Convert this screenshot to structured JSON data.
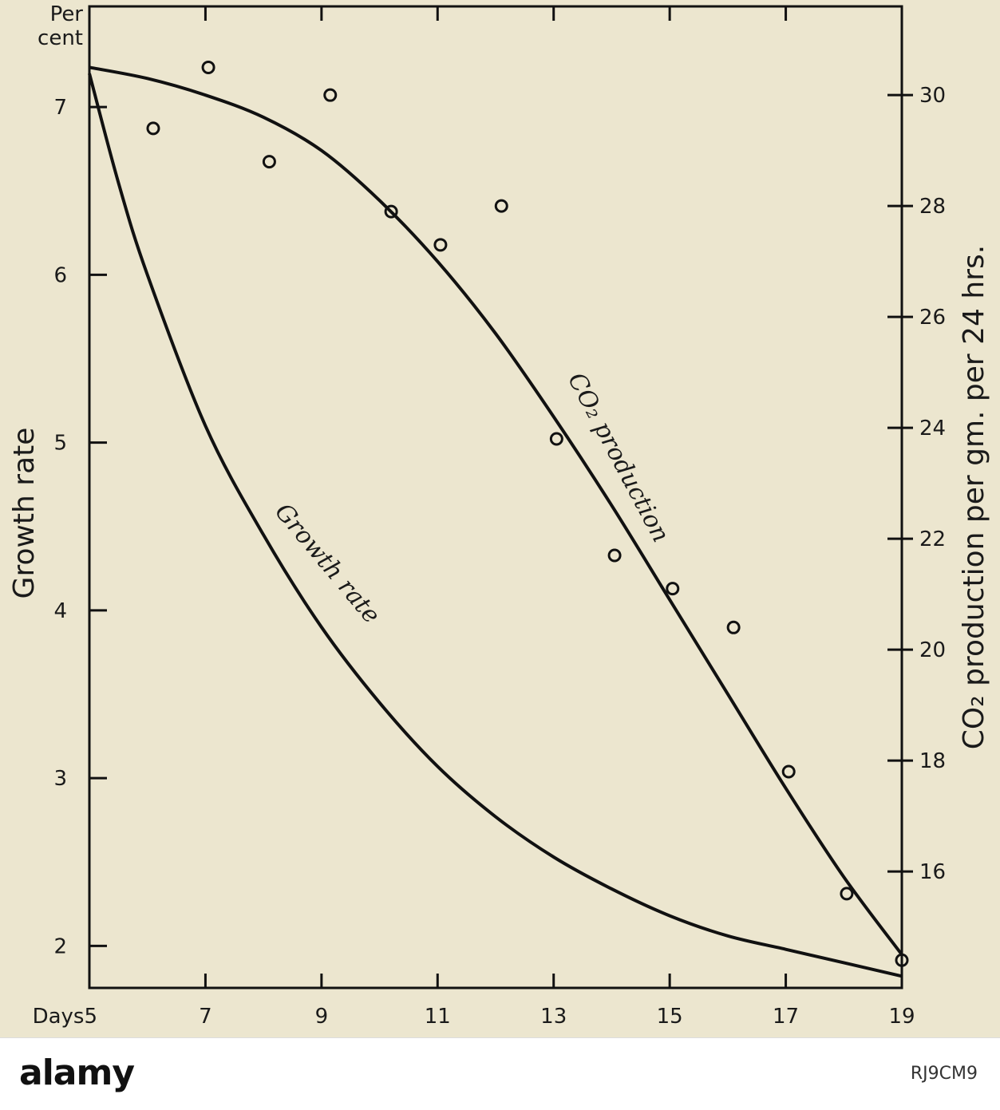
{
  "chart_data": {
    "type": "line",
    "x_label": "Days",
    "x_ticks": [
      5,
      7,
      9,
      11,
      13,
      15,
      17,
      19
    ],
    "x_range": [
      5,
      19
    ],
    "y_left": {
      "label": "Growth rate",
      "unit_label_line1": "Per",
      "unit_label_line2": "cent",
      "ticks": [
        2,
        3,
        4,
        5,
        6,
        7
      ],
      "range": [
        1.75,
        7.6
      ]
    },
    "y_right": {
      "label": "CO₂ production per gm. per 24 hrs.",
      "ticks": [
        16,
        18,
        20,
        22,
        24,
        26,
        28,
        30
      ],
      "range": [
        13.9,
        31.6
      ]
    },
    "series": [
      {
        "name": "CO₂ production",
        "axis": "right",
        "curve": [
          [
            5,
            30.5
          ],
          [
            6,
            30.3
          ],
          [
            7,
            30.0
          ],
          [
            8,
            29.6
          ],
          [
            9,
            29.0
          ],
          [
            10,
            28.1
          ],
          [
            11,
            27.0
          ],
          [
            12,
            25.7
          ],
          [
            13,
            24.2
          ],
          [
            14,
            22.6
          ],
          [
            15,
            20.9
          ],
          [
            16,
            19.2
          ],
          [
            17,
            17.5
          ],
          [
            18,
            15.9
          ],
          [
            19,
            14.5
          ]
        ],
        "points": [
          [
            6.1,
            29.4
          ],
          [
            7.05,
            30.5
          ],
          [
            8.1,
            28.8
          ],
          [
            9.15,
            30.0
          ],
          [
            10.2,
            27.9
          ],
          [
            11.05,
            27.3
          ],
          [
            12.1,
            28.0
          ],
          [
            13.05,
            23.8
          ],
          [
            14.05,
            21.7
          ],
          [
            15.05,
            21.1
          ],
          [
            16.1,
            20.4
          ],
          [
            17.05,
            17.8
          ],
          [
            18.05,
            15.6
          ],
          [
            19.0,
            14.4
          ]
        ]
      },
      {
        "name": "Growth rate",
        "axis": "left",
        "curve": [
          [
            5,
            7.2
          ],
          [
            5.5,
            6.55
          ],
          [
            6,
            6.0
          ],
          [
            7,
            5.1
          ],
          [
            8,
            4.45
          ],
          [
            9,
            3.9
          ],
          [
            10,
            3.45
          ],
          [
            11,
            3.07
          ],
          [
            12,
            2.77
          ],
          [
            13,
            2.53
          ],
          [
            14,
            2.34
          ],
          [
            15,
            2.18
          ],
          [
            16,
            2.06
          ],
          [
            17,
            1.98
          ],
          [
            18,
            1.9
          ],
          [
            19,
            1.82
          ]
        ]
      }
    ],
    "curve_labels": [
      "CO₂ production",
      "Growth rate"
    ]
  },
  "watermark": {
    "brand": "alamy",
    "image_id": "RJ9CM9"
  }
}
